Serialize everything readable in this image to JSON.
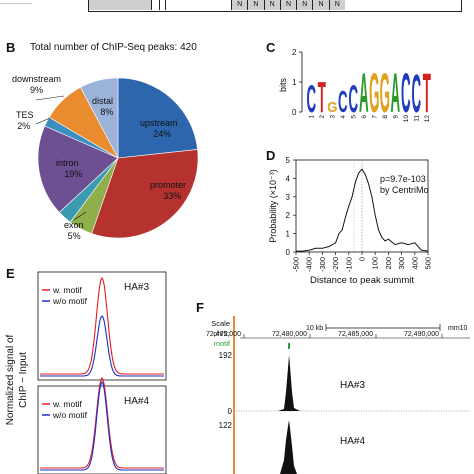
{
  "panel_a_track": {
    "labels": [
      "N",
      "N",
      "N",
      "N",
      "N",
      "N",
      "N"
    ]
  },
  "panel_b": {
    "letter": "B",
    "title": "Total number of ChIP-Seq peaks: 420",
    "slices": [
      {
        "name": "upstream",
        "pct": "24%",
        "color": "#2e66ad"
      },
      {
        "name": "promoter",
        "pct": "33%",
        "color": "#b5322e"
      },
      {
        "name": "exon",
        "pct": "5%",
        "color": "#8fae4c"
      },
      {
        "name": "",
        "pct": "",
        "color": "#3a9bb0"
      },
      {
        "name": "intron",
        "pct": "19%",
        "color": "#6d4f93"
      },
      {
        "name": "TES",
        "pct": "2%",
        "color": "#3a8ec0"
      },
      {
        "name": "downstream",
        "pct": "9%",
        "color": "#e98c2f"
      },
      {
        "name": "distal",
        "pct": "8%",
        "color": "#9bb3d9"
      }
    ]
  },
  "panel_c": {
    "letter": "C",
    "ylabel": "bits",
    "yticks": [
      "2",
      "1",
      "0"
    ],
    "xticks": [
      "1",
      "2",
      "3",
      "4",
      "5",
      "6",
      "7",
      "8",
      "9",
      "10",
      "11",
      "12"
    ],
    "motif": [
      {
        "ch": "C",
        "color": "#1f3bbf",
        "h": 0.95
      },
      {
        "ch": "T",
        "color": "#d62020",
        "h": 1.05
      },
      {
        "ch": "G",
        "color": "#e0a020",
        "h": 0.35
      },
      {
        "ch": "C",
        "color": "#1f3bbf",
        "h": 0.75
      },
      {
        "ch": "C",
        "color": "#1f3bbf",
        "h": 0.95
      },
      {
        "ch": "A",
        "color": "#2a9a2a",
        "h": 1.35
      },
      {
        "ch": "G",
        "color": "#e0a020",
        "h": 1.35
      },
      {
        "ch": "G",
        "color": "#e0a020",
        "h": 1.35
      },
      {
        "ch": "A",
        "color": "#2a9a2a",
        "h": 1.35
      },
      {
        "ch": "C",
        "color": "#1f3bbf",
        "h": 1.35
      },
      {
        "ch": "C",
        "color": "#1f3bbf",
        "h": 1.3
      },
      {
        "ch": "T",
        "color": "#d62020",
        "h": 1.35
      }
    ]
  },
  "panel_d": {
    "letter": "D",
    "ylabel": "Probability (×10⁻³)",
    "xlabel": "Distance to peak summit",
    "annot_p": "p=9.7e-103",
    "annot_by": "by CentriMo",
    "yticks": [
      "5",
      "4",
      "3",
      "2",
      "1",
      "0"
    ],
    "xticks": [
      "-500",
      "-400",
      "-300",
      "-200",
      "-100",
      "0",
      "100",
      "200",
      "300",
      "400",
      "500"
    ]
  },
  "panel_e": {
    "letter": "E",
    "ylabel_line1": "Normalized signal of",
    "ylabel_line2": "ChIP − Input",
    "top": {
      "name": "HA#3",
      "legend": [
        "w. motif",
        "w/o motif"
      ]
    },
    "bottom": {
      "name": "HA#4",
      "legend": [
        "w. motif",
        "w/o motif"
      ]
    },
    "colors": {
      "with": "#e02020",
      "without": "#1f2fc8"
    }
  },
  "panel_f": {
    "letter": "F",
    "scale_label": "Scale",
    "chrom_label": "chr2:",
    "motif_label": "motif",
    "kb_label": "10 kb",
    "genome": "mm10",
    "coords": [
      "72,475,000",
      "72,480,000",
      "72,485,000",
      "72,490,000"
    ],
    "track1": {
      "name": "HA#3",
      "max": "192",
      "min": "0"
    },
    "track2": {
      "name": "HA#4",
      "max": "122"
    },
    "colors": {
      "orange": "#e8801f",
      "motif": "#2aa040"
    }
  },
  "chart_data": [
    {
      "type": "pie",
      "title": "Total number of ChIP-Seq peaks: 420",
      "categories": [
        "upstream",
        "promoter",
        "exon",
        "intron",
        "TES",
        "downstream",
        "distal"
      ],
      "values": [
        24,
        33,
        5,
        19,
        2,
        9,
        8
      ]
    },
    {
      "type": "line",
      "xlabel": "Distance to peak summit",
      "ylabel": "Probability (×10⁻³)",
      "xlim": [
        -500,
        500
      ],
      "ylim": [
        0,
        5
      ],
      "x": [
        -500,
        -450,
        -400,
        -350,
        -300,
        -250,
        -200,
        -175,
        -150,
        -125,
        -100,
        -75,
        -50,
        -25,
        0,
        25,
        50,
        75,
        100,
        125,
        150,
        175,
        200,
        250,
        300,
        350,
        400,
        450,
        500
      ],
      "series": [
        {
          "values": [
            0.05,
            0.05,
            0.1,
            0.2,
            0.2,
            0.3,
            0.5,
            1.0,
            1.2,
            1.9,
            2.5,
            3.0,
            3.8,
            4.3,
            4.5,
            4.2,
            3.7,
            3.0,
            2.0,
            1.2,
            0.8,
            0.6,
            0.7,
            0.4,
            0.5,
            0.4,
            0.5,
            0.1,
            0.05
          ]
        }
      ]
    },
    {
      "type": "line",
      "title": "HA#3",
      "series": [
        {
          "name": "w. motif",
          "values": [
            0.02,
            0.03,
            0.05,
            0.1,
            0.3,
            0.8,
            1.0,
            0.8,
            0.3,
            0.1,
            0.05,
            0.03,
            0.02
          ]
        },
        {
          "name": "w/o motif",
          "values": [
            0.01,
            0.02,
            0.03,
            0.06,
            0.15,
            0.45,
            0.6,
            0.45,
            0.15,
            0.06,
            0.03,
            0.02,
            0.01
          ]
        }
      ]
    },
    {
      "type": "line",
      "title": "HA#4",
      "series": [
        {
          "name": "w. motif",
          "values": [
            0.02,
            0.03,
            0.05,
            0.1,
            0.3,
            0.8,
            1.0,
            0.8,
            0.3,
            0.1,
            0.05,
            0.03,
            0.02
          ]
        },
        {
          "name": "w/o motif",
          "values": [
            0.02,
            0.03,
            0.05,
            0.1,
            0.28,
            0.75,
            0.95,
            0.75,
            0.28,
            0.1,
            0.05,
            0.03,
            0.02
          ]
        }
      ]
    }
  ]
}
